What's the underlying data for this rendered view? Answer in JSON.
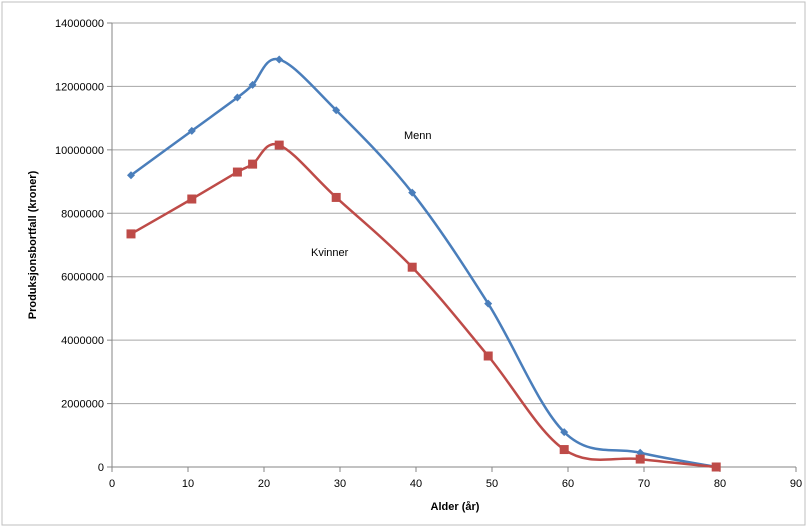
{
  "chart_data": {
    "type": "line",
    "title": "",
    "xlabel": "Alder (år)",
    "ylabel": "Produksjonsbortfall (kroner)",
    "xlim": [
      0,
      90
    ],
    "ylim": [
      0,
      14000000
    ],
    "x_ticks": [
      "0",
      "10",
      "20",
      "30",
      "40",
      "50",
      "60",
      "70",
      "80",
      "90"
    ],
    "y_ticks": [
      "0",
      "2000000",
      "4000000",
      "6000000",
      "8000000",
      "10000000",
      "12000000",
      "14000000"
    ],
    "grid": "horizontal",
    "legend": "none",
    "annotations": [
      {
        "text": "Menn",
        "series": "Menn"
      },
      {
        "text": "Kvinner",
        "series": "Kvinner"
      }
    ],
    "series": [
      {
        "name": "Menn",
        "color": "#4a7ebb",
        "marker": "diamond",
        "points": [
          [
            2.5,
            9200000
          ],
          [
            10.5,
            10600000
          ],
          [
            16.5,
            11650000
          ],
          [
            18.5,
            12050000
          ],
          [
            22,
            12850000
          ],
          [
            29.5,
            11250000
          ],
          [
            39.5,
            8650000
          ],
          [
            49.5,
            5150000
          ],
          [
            59.5,
            1100000
          ],
          [
            69.5,
            450000
          ],
          [
            79.5,
            0
          ]
        ]
      },
      {
        "name": "Kvinner",
        "color": "#be4b48",
        "marker": "square",
        "points": [
          [
            2.5,
            7350000
          ],
          [
            10.5,
            8450000
          ],
          [
            16.5,
            9300000
          ],
          [
            18.5,
            9550000
          ],
          [
            22,
            10150000
          ],
          [
            29.5,
            8500000
          ],
          [
            39.5,
            6300000
          ],
          [
            49.5,
            3500000
          ],
          [
            59.5,
            550000
          ],
          [
            69.5,
            250000
          ],
          [
            79.5,
            0
          ]
        ]
      }
    ]
  }
}
